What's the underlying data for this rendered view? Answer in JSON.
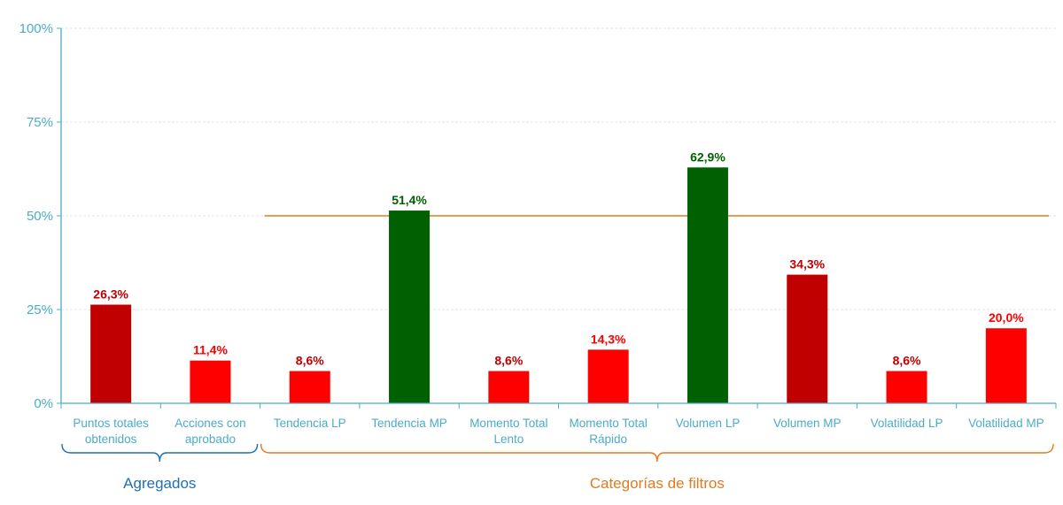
{
  "chart_data": {
    "type": "bar",
    "title": "",
    "xlabel": "",
    "ylabel": "",
    "ylim": [
      0,
      100
    ],
    "yticks": [
      "0%",
      "25%",
      "50%",
      "75%",
      "100%"
    ],
    "grid": true,
    "categories": [
      [
        "Puntos totales",
        "obtenidos"
      ],
      [
        "Acciones con",
        "aprobado"
      ],
      [
        "Tendencia LP"
      ],
      [
        "Tendencia MP"
      ],
      [
        "Momento Total",
        "Lento"
      ],
      [
        "Momento Total",
        "Rápido"
      ],
      [
        "Volumen LP"
      ],
      [
        "Volumen MP"
      ],
      [
        "Volatilidad LP"
      ],
      [
        "Volatilidad MP"
      ]
    ],
    "values": [
      26.3,
      11.4,
      8.6,
      51.4,
      8.6,
      14.3,
      62.9,
      34.3,
      8.6,
      20.0
    ],
    "value_labels": [
      "26,3%",
      "11,4%",
      "8,6%",
      "51,4%",
      "8,6%",
      "14,3%",
      "62,9%",
      "34,3%",
      "8,6%",
      "20,0%"
    ],
    "bar_colors": [
      "#c00000",
      "#ff0000",
      "#ff0000",
      "#006100",
      "#ff0000",
      "#ff0000",
      "#006100",
      "#c00000",
      "#ff0000",
      "#ff0000"
    ],
    "label_colors": [
      "#c00000",
      "#ff0000",
      "#c00000",
      "#006100",
      "#c00000",
      "#ff0000",
      "#006100",
      "#c00000",
      "#c00000",
      "#ff0000"
    ],
    "reference_line": {
      "value": 50,
      "from_category": 2,
      "to_category": 9,
      "color": "#e07b1f"
    },
    "groups": [
      {
        "label": "Agregados",
        "from": 0,
        "to": 1,
        "color": "#1f6fb5"
      },
      {
        "label": "Categorías de filtros",
        "from": 2,
        "to": 9,
        "color": "#e07b1f"
      }
    ],
    "colors": {
      "axis": "#4bacc6",
      "tick_text": "#4bacc6",
      "grid": "#e4e4e4"
    }
  }
}
